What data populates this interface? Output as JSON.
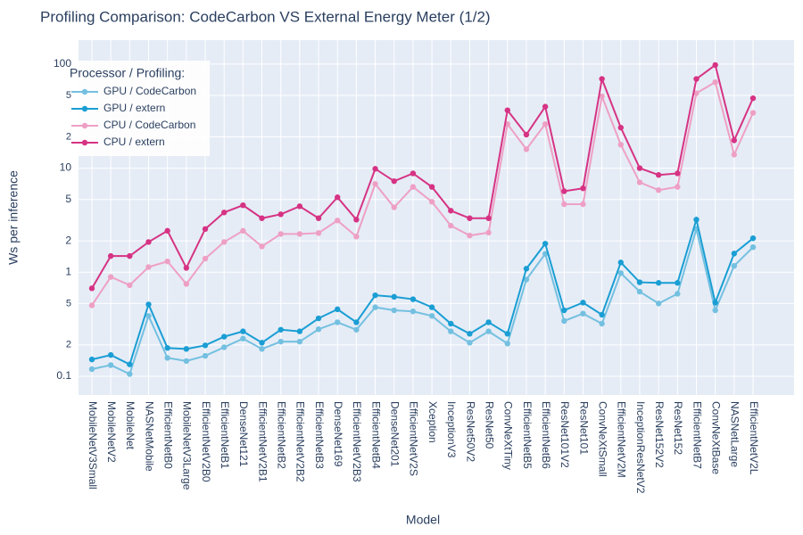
{
  "chart_data": {
    "type": "line",
    "title": "Profiling Comparison: CodeCarbon VS External Energy Meter (1/2)",
    "xlabel": "Model",
    "ylabel": "Ws per inference",
    "log_y": true,
    "grid": true,
    "legend_title": "Processor / Profiling:",
    "legend_position": "top-left",
    "categories": [
      "MobileNetV3Small",
      "MobileNetV2",
      "MobileNet",
      "NASNetMobile",
      "EfficientNetB0",
      "MobileNetV3Large",
      "EfficientNetV2B0",
      "EfficientNetB1",
      "DenseNet121",
      "EfficientNetV2B1",
      "EfficientNetB2",
      "EfficientNetV2B2",
      "EfficientNetB3",
      "DenseNet169",
      "EfficientNetV2B3",
      "EfficientNetB4",
      "DenseNet201",
      "EfficientNetV2S",
      "Xception",
      "InceptionV3",
      "ResNet50V2",
      "ResNet50",
      "ConvNeXtTiny",
      "EfficientNetB5",
      "EfficientNetB6",
      "ResNet101V2",
      "ResNet101",
      "ConvNeXtSmall",
      "EfficientNetV2M",
      "InceptionResNetV2",
      "ResNet152V2",
      "ResNet152",
      "EfficientNetB7",
      "ConvNeXtBase",
      "NASNetLarge",
      "EfficientNetV2L"
    ],
    "ylim": [
      0.066,
      170
    ],
    "yticks": [
      0.1,
      {
        "value": 0.2,
        "label": "2"
      },
      {
        "value": 0.5,
        "label": "5"
      },
      1,
      2,
      5,
      10,
      {
        "value": 20,
        "label": "2"
      },
      {
        "value": 50,
        "label": "5"
      },
      100
    ],
    "series": [
      {
        "name": "GPU / CodeCarbon",
        "color": "#74c0e0",
        "values": [
          0.117,
          0.128,
          0.105,
          0.38,
          0.15,
          0.14,
          0.157,
          0.19,
          0.23,
          0.183,
          0.215,
          0.215,
          0.283,
          0.33,
          0.28,
          0.46,
          0.43,
          0.42,
          0.38,
          0.27,
          0.21,
          0.27,
          0.206,
          0.85,
          1.5,
          0.34,
          0.4,
          0.32,
          0.98,
          0.65,
          0.5,
          0.62,
          2.6,
          0.43,
          1.15,
          1.74
        ]
      },
      {
        "name": "GPU / extern",
        "color": "#1a9ed4",
        "values": [
          0.145,
          0.16,
          0.13,
          0.49,
          0.187,
          0.183,
          0.198,
          0.24,
          0.27,
          0.21,
          0.28,
          0.27,
          0.36,
          0.44,
          0.33,
          0.6,
          0.58,
          0.55,
          0.46,
          0.32,
          0.256,
          0.33,
          0.256,
          1.08,
          1.88,
          0.43,
          0.51,
          0.39,
          1.24,
          0.8,
          0.79,
          0.79,
          3.2,
          0.51,
          1.51,
          2.12
        ]
      },
      {
        "name": "CPU / CodeCarbon",
        "color": "#eea0c4",
        "values": [
          0.48,
          0.9,
          0.75,
          1.12,
          1.27,
          0.77,
          1.35,
          1.95,
          2.5,
          1.77,
          2.33,
          2.33,
          2.38,
          3.14,
          2.2,
          7.05,
          4.2,
          6.6,
          4.75,
          2.8,
          2.25,
          2.4,
          26.5,
          15.2,
          26.5,
          4.5,
          4.5,
          49,
          16.8,
          7.3,
          6.15,
          6.6,
          52.5,
          67,
          13.5,
          34
        ]
      },
      {
        "name": "CPU / extern",
        "color": "#d63384",
        "values": [
          0.7,
          1.43,
          1.43,
          1.95,
          2.5,
          1.1,
          2.6,
          3.75,
          4.4,
          3.3,
          3.6,
          4.3,
          3.3,
          5.25,
          3.2,
          9.85,
          7.5,
          8.9,
          6.6,
          3.9,
          3.3,
          3.3,
          36,
          21,
          39,
          6,
          6.4,
          72,
          24.5,
          10,
          8.6,
          8.9,
          72,
          98,
          18.5,
          47
        ]
      }
    ]
  }
}
